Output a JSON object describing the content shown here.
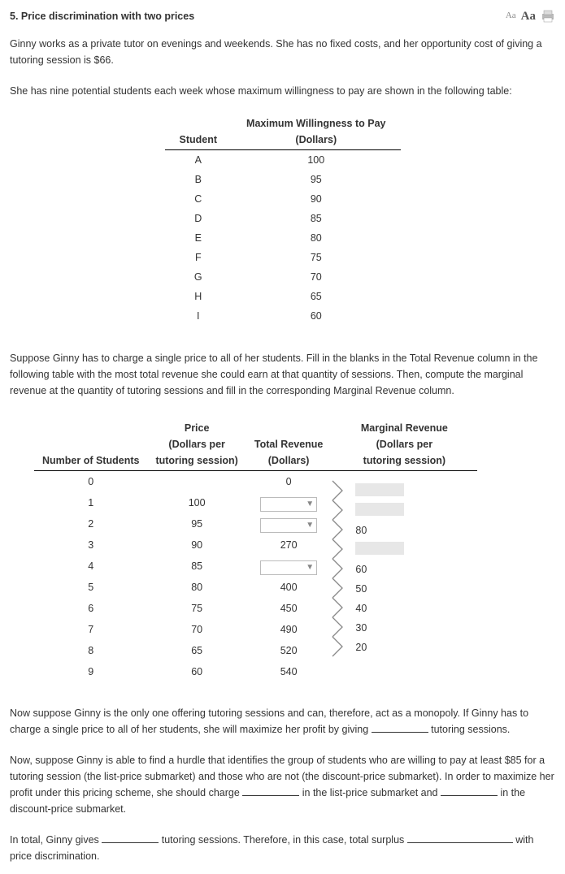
{
  "header": {
    "title": "5.  Price discrimination with two prices",
    "font_small": "Aa",
    "font_large": "Aa"
  },
  "p1": "Ginny works as a private tutor on evenings and weekends. She has no fixed costs, and her opportunity cost of giving a tutoring session is $66.",
  "p2": "She has nine potential students each week whose maximum willingness to pay are shown in the following table:",
  "wtp": {
    "col1": "Student",
    "col2a": "Maximum Willingness to Pay",
    "col2b": "(Dollars)",
    "rows": [
      {
        "s": "A",
        "v": "100"
      },
      {
        "s": "B",
        "v": "95"
      },
      {
        "s": "C",
        "v": "90"
      },
      {
        "s": "D",
        "v": "85"
      },
      {
        "s": "E",
        "v": "80"
      },
      {
        "s": "F",
        "v": "75"
      },
      {
        "s": "G",
        "v": "70"
      },
      {
        "s": "H",
        "v": "65"
      },
      {
        "s": "I",
        "v": "60"
      }
    ]
  },
  "p3": "Suppose Ginny has to charge a single price to all of her students. Fill in the blanks in the Total Revenue column in the following table with the most total revenue she could earn at that quantity of sessions. Then, compute the marginal revenue at the quantity of tutoring sessions and fill in the corresponding Marginal Revenue column.",
  "rev": {
    "h1": "Number of Students",
    "h2a": "Price",
    "h2b": "(Dollars per",
    "h2c": "tutoring session)",
    "h3a": "Total Revenue",
    "h3b": "(Dollars)",
    "h4a": "Marginal Revenue",
    "h4b": "(Dollars per",
    "h4c": "tutoring session)",
    "rows": [
      {
        "n": "0",
        "p": "",
        "tr": "0",
        "tr_type": "text"
      },
      {
        "n": "1",
        "p": "100",
        "tr": "",
        "tr_type": "dropdown"
      },
      {
        "n": "2",
        "p": "95",
        "tr": "",
        "tr_type": "dropdown"
      },
      {
        "n": "3",
        "p": "90",
        "tr": "270",
        "tr_type": "text"
      },
      {
        "n": "4",
        "p": "85",
        "tr": "",
        "tr_type": "dropdown"
      },
      {
        "n": "5",
        "p": "80",
        "tr": "400",
        "tr_type": "text"
      },
      {
        "n": "6",
        "p": "75",
        "tr": "450",
        "tr_type": "text"
      },
      {
        "n": "7",
        "p": "70",
        "tr": "490",
        "tr_type": "text"
      },
      {
        "n": "8",
        "p": "65",
        "tr": "520",
        "tr_type": "text"
      },
      {
        "n": "9",
        "p": "60",
        "tr": "540",
        "tr_type": "text"
      }
    ],
    "mr": [
      {
        "type": "gray",
        "val": ""
      },
      {
        "type": "gray",
        "val": ""
      },
      {
        "type": "text",
        "val": "80"
      },
      {
        "type": "gray",
        "val": ""
      },
      {
        "type": "text",
        "val": "60"
      },
      {
        "type": "text",
        "val": "50"
      },
      {
        "type": "text",
        "val": "40"
      },
      {
        "type": "text",
        "val": "30"
      },
      {
        "type": "text",
        "val": "20"
      }
    ]
  },
  "p4a": "Now suppose Ginny is the only one offering tutoring sessions and can, therefore, act as a monopoly. If Ginny has to charge a single price to all of her students, she will maximize her profit by giving ",
  "p4b": " tutoring sessions.",
  "p5a": "Now, suppose Ginny is able to find a hurdle that identifies the group of students who are willing to pay at least $85 for a tutoring session (the list-price submarket) and those who are not (the discount-price submarket). In order to maximize her profit under this pricing scheme, she should charge ",
  "p5b": " in the list-price submarket and ",
  "p5c": " in the discount-price submarket.",
  "p6a": "In total, Ginny gives ",
  "p6b": " tutoring sessions. Therefore, in this case, total surplus ",
  "p6c": " with price discrimination.",
  "colors": {
    "text": "#333333",
    "border": "#000000",
    "dropdown_border": "#bbbbbb",
    "graybox": "#e7e7e7",
    "bracket": "#888888"
  }
}
